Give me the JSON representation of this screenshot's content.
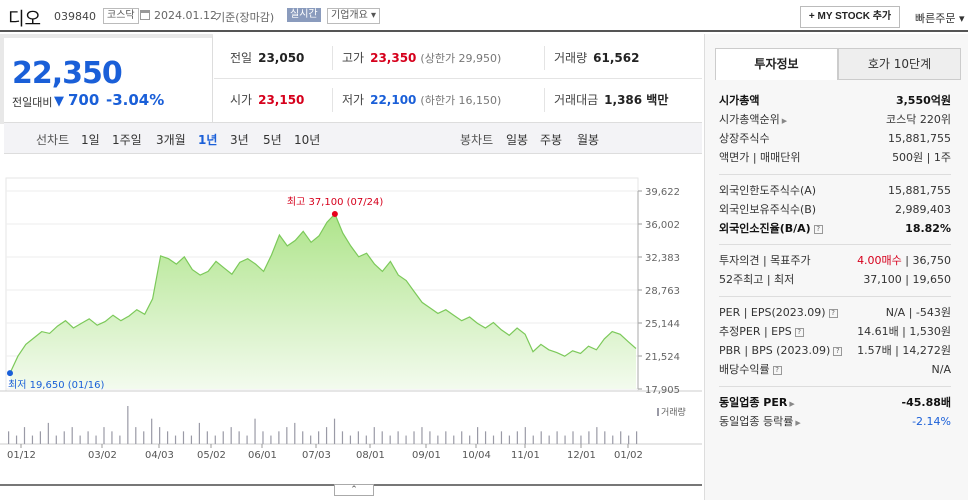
{
  "header": {
    "stock_name": "디오",
    "stock_code": "039840",
    "market": "코스닥",
    "date": "2024.01.12",
    "basis": "기준(장마감)",
    "realtime": "실시간",
    "overview": "기업개요 ▾",
    "mystock_label": "+ MY STOCK 추가",
    "quick_order": "빠른주문 ▾"
  },
  "price": {
    "current": "22,350",
    "diff_label": "전일대비",
    "diff": "700",
    "rate": "-3.04%"
  },
  "summary": {
    "prev_label": "전일",
    "prev": "23,050",
    "high_label": "고가",
    "high": "23,350",
    "upper": "(상한가 29,950)",
    "volume_label": "거래량",
    "volume": "61,562",
    "open_label": "시가",
    "open": "23,150",
    "low_label": "저가",
    "low": "22,100",
    "lower": "(하한가 16,150)",
    "amount_label": "거래대금",
    "amount": "1,386 백만"
  },
  "periods": {
    "line_label": "선차트",
    "items": [
      "1일",
      "1주일",
      "3개월",
      "1년",
      "3년",
      "5년",
      "10년"
    ],
    "selected": "1년",
    "candle_label": "봉차트",
    "candle_items": [
      "일봉",
      "주봉",
      "월봉"
    ]
  },
  "chart_data": {
    "type": "area",
    "y_ticks": [
      "39,622",
      "36,002",
      "32,383",
      "28,763",
      "25,144",
      "21,524",
      "17,905"
    ],
    "ylim": [
      17905,
      39622
    ],
    "x_ticks": [
      "01/12",
      "03/02",
      "04/03",
      "05/02",
      "06/01",
      "07/03",
      "08/01",
      "09/01",
      "10/04",
      "11/01",
      "12/01",
      "01/02"
    ],
    "high_label": "최고 37,100 (07/24)",
    "low_label": "최저 19,650 (01/16)",
    "volume_label": "거래량",
    "series": [
      {
        "values": [
          19650,
          21500,
          22800,
          23500,
          24200,
          24000,
          24800,
          25400,
          24600,
          25100,
          25600,
          24900,
          25300,
          26000,
          25400,
          25900,
          26600,
          26100,
          27800,
          32500,
          32200,
          31600,
          32400,
          31000,
          30400,
          30800,
          31900,
          31200,
          30500,
          31800,
          32200,
          31600,
          30800,
          32600,
          34800,
          33600,
          34200,
          35200,
          34000,
          34700,
          36200,
          37100,
          35000,
          33600,
          32400,
          32800,
          31600,
          30800,
          31900,
          30400,
          29800,
          28600,
          27400,
          26800,
          26200,
          26600,
          26000,
          25400,
          25800,
          25100,
          24600,
          25200,
          24400,
          23800,
          24600,
          23900,
          22000,
          22800,
          22200,
          21900,
          21500,
          22100,
          21800,
          22600,
          22200,
          23400,
          24200,
          23900,
          23100,
          22350
        ]
      }
    ],
    "volume": [
      3,
      2,
      4,
      2,
      3,
      5,
      2,
      3,
      4,
      2,
      3,
      2,
      4,
      3,
      2,
      9,
      4,
      3,
      6,
      4,
      3,
      2,
      3,
      2,
      5,
      3,
      2,
      3,
      4,
      3,
      2,
      6,
      3,
      2,
      3,
      4,
      5,
      3,
      2,
      3,
      4,
      6,
      3,
      2,
      3,
      2,
      4,
      3,
      2,
      3,
      2,
      3,
      4,
      3,
      2,
      3,
      2,
      3,
      2,
      4,
      3,
      2,
      3,
      2,
      3,
      4,
      2,
      3,
      2,
      3,
      2,
      3,
      2,
      3,
      4,
      3,
      2,
      3,
      2,
      3
    ]
  },
  "panel": {
    "tab_active": "투자정보",
    "tab_other": "호가 10단계",
    "rows1": [
      {
        "k": "시가총액",
        "v": "3,550억원",
        "b": true
      },
      {
        "k": "시가총액순위",
        "v": "코스닥 220위"
      },
      {
        "k": "상장주식수",
        "v": "15,881,755"
      },
      {
        "k": "액면가 | 매매단위",
        "v": "500원 | 1주"
      }
    ],
    "rows2": [
      {
        "k": "외국인한도주식수(A)",
        "v": "15,881,755"
      },
      {
        "k": "외국인보유주식수(B)",
        "v": "2,989,403"
      },
      {
        "k": "외국인소진율(B/A)",
        "v": "18.82%",
        "b": true
      }
    ],
    "rows3": [
      {
        "k": "투자의견 | 목표주가",
        "v_red": "4.00매수",
        "v": "| 36,750"
      },
      {
        "k": "52주최고 | 최저",
        "v": "37,100 | 19,650"
      }
    ],
    "rows4": [
      {
        "k": "PER | EPS(2023.09)",
        "v": "N/A | -543원"
      },
      {
        "k": "추정PER | EPS",
        "v": "14.61배 | 1,530원"
      },
      {
        "k": "PBR | BPS (2023.09)",
        "v": "1.57배 | 14,272원"
      },
      {
        "k": "배당수익률",
        "v": "N/A"
      }
    ],
    "rows5": [
      {
        "k": "동일업종 PER",
        "v": "-45.88배",
        "b": true
      },
      {
        "k": "동일업종 등락률",
        "v": "-2.14%",
        "blue": true
      }
    ]
  }
}
